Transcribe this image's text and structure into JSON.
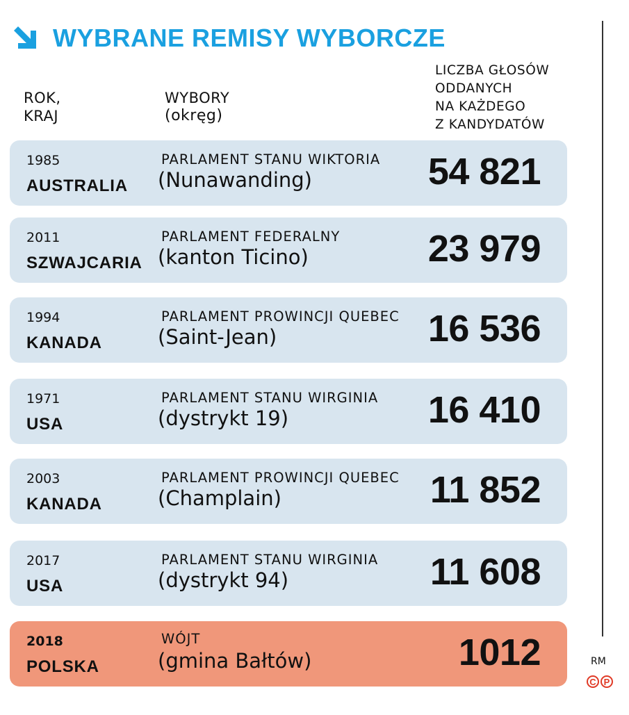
{
  "title": "WYBRANE REMISY WYBORCZE",
  "colors": {
    "accent": "#1aa0e0",
    "row_bg": "#d8e5ef",
    "highlight_bg": "#f0977a"
  },
  "headers": {
    "rok_kraj_line1": "ROK,",
    "rok_kraj_line2": "KRAJ",
    "wybory": "WYBORY",
    "okreg": "(okręg)",
    "liczba": [
      "LICZBA GŁOSÓW",
      "ODDANYCH",
      "NA KAŻDEGO",
      "Z KANDYDATÓW"
    ]
  },
  "rows": [
    {
      "year": "1985",
      "country": "AUSTRALIA",
      "election": "PARLAMENT STANU WIKTORIA",
      "district": "(Nunawanding)",
      "votes": "54 821"
    },
    {
      "year": "2011",
      "country": "SZWAJCARIA",
      "election": "PARLAMENT FEDERALNY",
      "district": "(kanton Ticino)",
      "votes": "23 979"
    },
    {
      "year": "1994",
      "country": "KANADA",
      "election": "PARLAMENT PROWINCJI QUEBEC",
      "district": "(Saint-Jean)",
      "votes": "16 536"
    },
    {
      "year": "1971",
      "country": "USA",
      "election": "PARLAMENT STANU WIRGINIA",
      "district": "(dystrykt 19)",
      "votes": "16 410"
    },
    {
      "year": "2003",
      "country": "KANADA",
      "election": "PARLAMENT PROWINCJI QUEBEC",
      "district": "(Champlain)",
      "votes": "11 852"
    },
    {
      "year": "2017",
      "country": "USA",
      "election": "PARLAMENT STANU WIRGINIA",
      "district": "(dystrykt 94)",
      "votes": "11 608"
    },
    {
      "year": "2018",
      "country": "POLSKA",
      "election": "WÓJT",
      "district": "(gmina Bałtów)",
      "votes": "1012"
    }
  ],
  "credit": "RM",
  "copyright_marks": [
    "C",
    "P"
  ]
}
